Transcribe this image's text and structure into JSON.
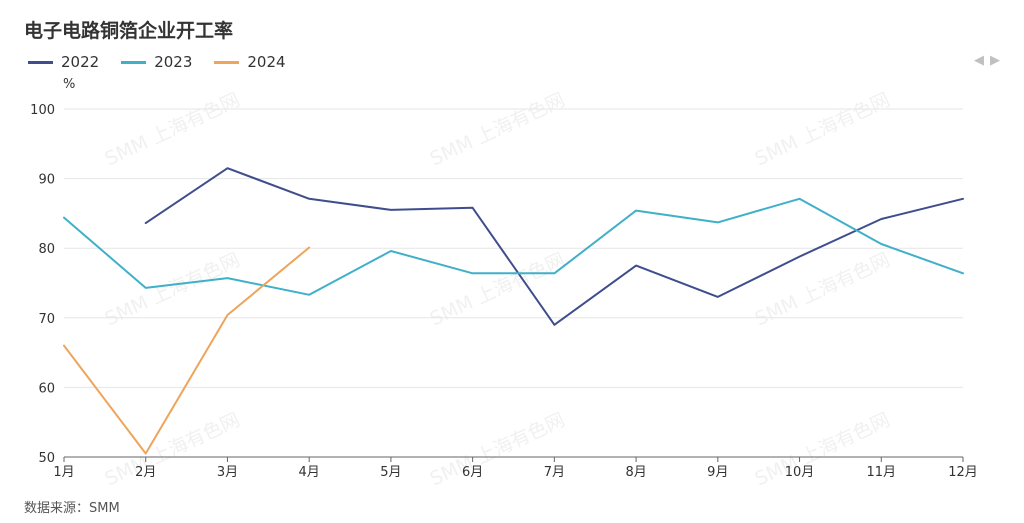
{
  "title": "电子电路铜箔企业开工率",
  "source": "数据来源：SMM",
  "pager": {
    "prev_icon": "◀",
    "next_icon": "▶"
  },
  "watermark": "SMM 上海有色网",
  "chart_data": {
    "type": "line",
    "title": "电子电路铜箔企业开工率",
    "ylabel": "%",
    "xlabel": "",
    "ylim": [
      50,
      100
    ],
    "yticks": [
      50,
      60,
      70,
      80,
      90,
      100
    ],
    "grid": true,
    "legend_position": "top-left",
    "categories": [
      "1月",
      "2月",
      "3月",
      "4月",
      "5月",
      "6月",
      "7月",
      "8月",
      "9月",
      "10月",
      "11月",
      "12月"
    ],
    "series": [
      {
        "name": "2022",
        "color": "#3f4d8e",
        "values": [
          null,
          83.6,
          91.5,
          87.1,
          85.5,
          85.8,
          69.0,
          77.5,
          73.0,
          78.8,
          84.2,
          87.1
        ]
      },
      {
        "name": "2023",
        "color": "#3fb0c8",
        "values": [
          84.4,
          74.3,
          75.7,
          73.3,
          79.6,
          76.4,
          76.4,
          85.4,
          83.7,
          87.1,
          80.6,
          76.4
        ]
      },
      {
        "name": "2024",
        "color": "#eea45a",
        "values": [
          66.0,
          50.5,
          70.4,
          80.1,
          null,
          null,
          null,
          null,
          null,
          null,
          null,
          null
        ]
      }
    ]
  }
}
